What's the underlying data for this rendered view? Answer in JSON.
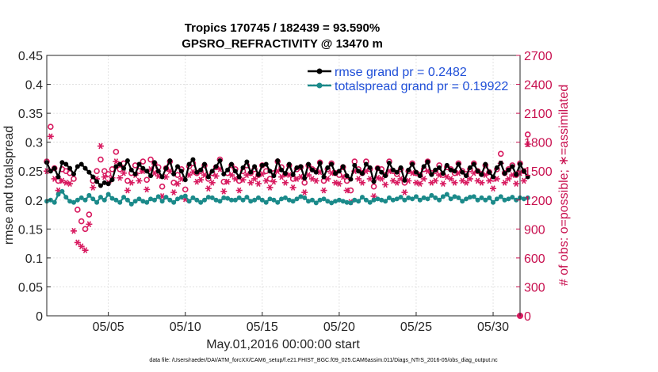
{
  "chart_data": {
    "type": "line",
    "title_line1": "Tropics 170745 / 182439 = 93.590%",
    "title_line2": "GPSRO_REFRACTIVITY @ 13470 m",
    "xlabel": "May.01,2016 00:00:00 start",
    "ylabel_left": "rmse and totalspread",
    "ylabel_right": "# of obs: o=possible; ∗=assimilated",
    "footnote": "data file: /Users/raeder/DAI/ATM_forcXX/CAM6_setup/f.e21.FHIST_BGC.f09_025.CAM6assim.011/Diags_NTrS_2016-05/obs_diag_output.nc",
    "x_range": [
      1.0,
      31.75
    ],
    "x_tick_values": [
      5,
      10,
      15,
      20,
      25,
      30
    ],
    "x_tick_labels": [
      "05/05",
      "05/10",
      "05/15",
      "05/20",
      "05/25",
      "05/30"
    ],
    "y_left_range": [
      0,
      0.45
    ],
    "y_left_tick_labels": [
      "0",
      "0.05",
      "0.1",
      "0.15",
      "0.2",
      "0.25",
      "0.3",
      "0.35",
      "0.4",
      "0.45"
    ],
    "y_right_range": [
      0,
      2700
    ],
    "y_right_tick_labels": [
      "0",
      "300",
      "600",
      "900",
      "1200",
      "1500",
      "1800",
      "2100",
      "2400",
      "2700"
    ],
    "x_step_days": 0.25,
    "x_start": 1.0,
    "legend": [
      {
        "label": "rmse grand pr = 0.2482",
        "color": "#000000"
      },
      {
        "label": "totalspread grand pr = 0.19922",
        "color": "#1b8a8a"
      }
    ],
    "colors": {
      "rmse": "#000000",
      "spread": "#1b8a8a",
      "obs": "#d81b60",
      "axis_right": "#c8104f"
    },
    "series": [
      {
        "name": "rmse",
        "axis": "left",
        "values": [
          0.265,
          0.25,
          0.255,
          0.24,
          0.265,
          0.262,
          0.255,
          0.245,
          0.258,
          0.262,
          0.255,
          0.248,
          0.24,
          0.232,
          0.225,
          0.23,
          0.228,
          0.235,
          0.258,
          0.262,
          0.255,
          0.268,
          0.252,
          0.245,
          0.262,
          0.255,
          0.25,
          0.242,
          0.265,
          0.25,
          0.24,
          0.255,
          0.268,
          0.245,
          0.258,
          0.25,
          0.235,
          0.262,
          0.27,
          0.248,
          0.252,
          0.262,
          0.24,
          0.25,
          0.258,
          0.268,
          0.245,
          0.252,
          0.262,
          0.25,
          0.24,
          0.256,
          0.266,
          0.248,
          0.258,
          0.244,
          0.26,
          0.262,
          0.25,
          0.242,
          0.268,
          0.252,
          0.246,
          0.262,
          0.244,
          0.256,
          0.258,
          0.238,
          0.262,
          0.252,
          0.248,
          0.264,
          0.24,
          0.256,
          0.262,
          0.246,
          0.25,
          0.258,
          0.242,
          0.236,
          0.26,
          0.25,
          0.246,
          0.262,
          0.256,
          0.232,
          0.255,
          0.248,
          0.242,
          0.264,
          0.252,
          0.248,
          0.256,
          0.234,
          0.252,
          0.262,
          0.248,
          0.242,
          0.258,
          0.266,
          0.244,
          0.252,
          0.256,
          0.246,
          0.26,
          0.252,
          0.25,
          0.262,
          0.248,
          0.242,
          0.256,
          0.262,
          0.25,
          0.244,
          0.262,
          0.248,
          0.24,
          0.256,
          0.264,
          0.246,
          0.252,
          0.258,
          0.244,
          0.262,
          0.25,
          0.24
        ]
      },
      {
        "name": "totalspread",
        "axis": "left",
        "values": [
          0.198,
          0.2,
          0.196,
          0.21,
          0.215,
          0.205,
          0.198,
          0.196,
          0.2,
          0.204,
          0.2,
          0.208,
          0.202,
          0.196,
          0.205,
          0.2,
          0.21,
          0.203,
          0.2,
          0.196,
          0.205,
          0.2,
          0.193,
          0.198,
          0.202,
          0.198,
          0.196,
          0.202,
          0.2,
          0.206,
          0.198,
          0.205,
          0.2,
          0.196,
          0.202,
          0.205,
          0.207,
          0.198,
          0.204,
          0.2,
          0.196,
          0.2,
          0.205,
          0.204,
          0.2,
          0.198,
          0.204,
          0.203,
          0.2,
          0.2,
          0.204,
          0.2,
          0.205,
          0.198,
          0.2,
          0.204,
          0.2,
          0.196,
          0.202,
          0.2,
          0.196,
          0.202,
          0.204,
          0.2,
          0.198,
          0.202,
          0.206,
          0.204,
          0.198,
          0.2,
          0.195,
          0.2,
          0.202,
          0.198,
          0.195,
          0.198,
          0.2,
          0.198,
          0.196,
          0.195,
          0.2,
          0.198,
          0.205,
          0.2,
          0.196,
          0.2,
          0.202,
          0.2,
          0.198,
          0.204,
          0.2,
          0.202,
          0.205,
          0.2,
          0.204,
          0.202,
          0.206,
          0.2,
          0.204,
          0.202,
          0.208,
          0.204,
          0.2,
          0.206,
          0.21,
          0.202,
          0.206,
          0.204,
          0.198,
          0.202,
          0.205,
          0.206,
          0.2,
          0.204,
          0.2,
          0.204,
          0.196,
          0.202,
          0.206,
          0.2,
          0.202,
          0.205,
          0.2,
          0.204,
          0.202,
          0.204
        ]
      },
      {
        "name": "obs possible",
        "axis": "right",
        "values": [
          1600,
          1960,
          1530,
          1400,
          1520,
          1500,
          1480,
          1420,
          1100,
          980,
          900,
          1050,
          1400,
          1500,
          1620,
          1500,
          1470,
          1520,
          1700,
          1520,
          1580,
          1400,
          1480,
          1560,
          1500,
          1600,
          1410,
          1620,
          1580,
          1540,
          1340,
          1530,
          1600,
          1380,
          1460,
          1520,
          1310,
          1550,
          1580,
          1480,
          1500,
          1560,
          1420,
          1480,
          1540,
          1620,
          1390,
          1480,
          1560,
          1520,
          1400,
          1500,
          1560,
          1480,
          1520,
          1460,
          1560,
          1500,
          1420,
          1480,
          1600,
          1540,
          1470,
          1560,
          1420,
          1520,
          1540,
          1380,
          1560,
          1520,
          1500,
          1590,
          1400,
          1520,
          1580,
          1480,
          1460,
          1540,
          1400,
          1300,
          1600,
          1520,
          1480,
          1600,
          1520,
          1340,
          1530,
          1520,
          1460,
          1600,
          1500,
          1470,
          1520,
          1380,
          1500,
          1580,
          1480,
          1460,
          1520,
          1600,
          1480,
          1500,
          1560,
          1460,
          1540,
          1520,
          1480,
          1580,
          1500,
          1470,
          1520,
          1580,
          1500,
          1470,
          1560,
          1490,
          1420,
          1520,
          1680,
          1480,
          1520,
          1560,
          1460,
          1580,
          1500,
          1880
        ]
      },
      {
        "name": "obs assimilated",
        "axis": "right",
        "values": [
          1500,
          1860,
          1420,
          1300,
          1400,
          1380,
          1370,
          880,
          760,
          720,
          680,
          950,
          1330,
          1420,
          1760,
          1440,
          1380,
          1430,
          1600,
          1430,
          1480,
          1300,
          1380,
          1460,
          1400,
          1500,
          1310,
          1520,
          1480,
          1450,
          1240,
          1440,
          1500,
          1280,
          1370,
          1420,
          1210,
          1460,
          1490,
          1390,
          1410,
          1460,
          1320,
          1380,
          1450,
          1520,
          1290,
          1390,
          1460,
          1420,
          1300,
          1410,
          1460,
          1380,
          1420,
          1370,
          1470,
          1400,
          1330,
          1390,
          1500,
          1440,
          1380,
          1460,
          1330,
          1420,
          1440,
          1280,
          1460,
          1420,
          1400,
          1490,
          1300,
          1420,
          1480,
          1380,
          1370,
          1440,
          1300,
          1180,
          1500,
          1420,
          1380,
          1500,
          1420,
          1240,
          1430,
          1420,
          1360,
          1500,
          1400,
          1380,
          1420,
          1280,
          1400,
          1480,
          1380,
          1370,
          1420,
          1500,
          1380,
          1400,
          1460,
          1370,
          1440,
          1420,
          1380,
          1480,
          1400,
          1380,
          1420,
          1480,
          1400,
          1380,
          1460,
          1400,
          1320,
          1420,
          1580,
          1380,
          1420,
          1460,
          1370,
          1480,
          1400,
          1780
        ]
      }
    ]
  }
}
